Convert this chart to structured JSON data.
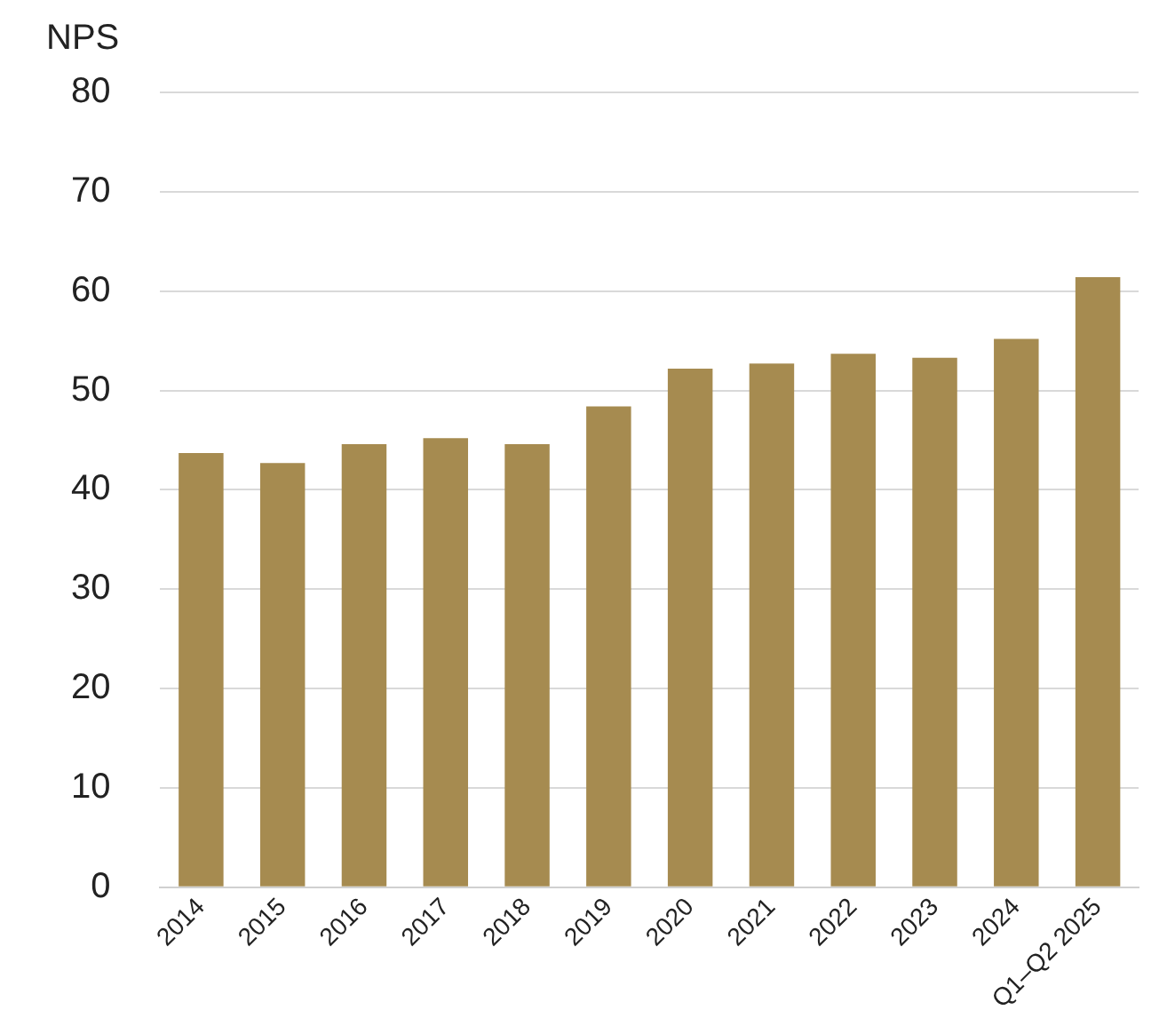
{
  "chart_data": {
    "type": "bar",
    "ylabel": "NPS",
    "categories": [
      "2014",
      "2015",
      "2016",
      "2017",
      "2018",
      "2019",
      "2020",
      "2021",
      "2022",
      "2023",
      "2024",
      "Q1–Q2 2025"
    ],
    "values": [
      43.7,
      42.7,
      44.6,
      45.2,
      44.6,
      48.4,
      52.2,
      52.7,
      53.7,
      53.3,
      55.2,
      61.4
    ],
    "color": "#a68b50",
    "ylim": [
      0,
      80
    ],
    "yticks": [
      0,
      10,
      20,
      30,
      40,
      50,
      60,
      70,
      80
    ],
    "grid": "y"
  }
}
